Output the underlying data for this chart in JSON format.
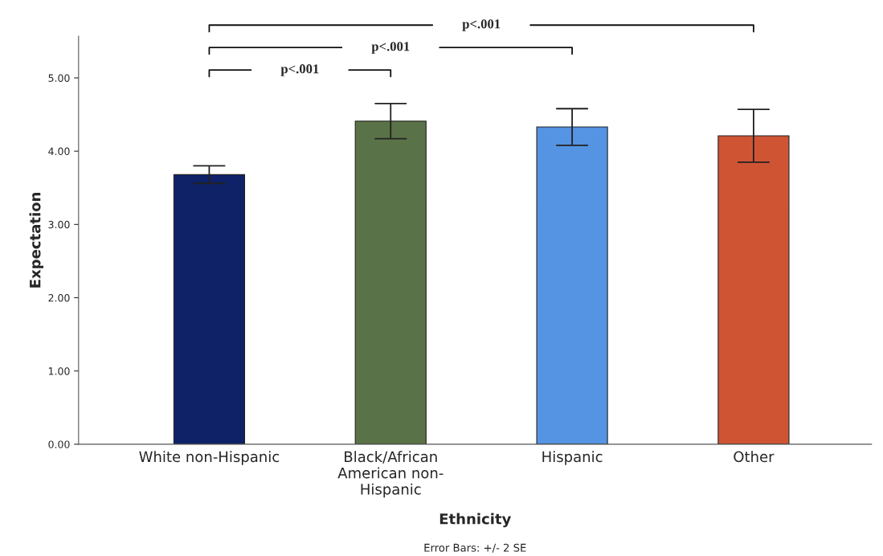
{
  "chart_data": {
    "type": "bar",
    "xlabel": "Ethnicity",
    "ylabel": "Expectation",
    "categories": [
      "White non-Hispanic",
      "Black/African\nAmerican non-\nHispanic",
      "Hispanic",
      "Other"
    ],
    "values": [
      3.68,
      4.41,
      4.33,
      4.21
    ],
    "colors": [
      "#0f2167",
      "#5a7247",
      "#5593e3",
      "#cf5434"
    ],
    "errors": [
      0.12,
      0.24,
      0.25,
      0.36
    ],
    "ylim": [
      0,
      5.57
    ],
    "yticks": [
      {
        "value": 0,
        "label": "0.00"
      },
      {
        "value": 1,
        "label": "1.00"
      },
      {
        "value": 2,
        "label": "2.00"
      },
      {
        "value": 3,
        "label": "3.00"
      },
      {
        "value": 4,
        "label": "4.00"
      },
      {
        "value": 5,
        "label": "5.00"
      }
    ],
    "grid": false,
    "legend": false,
    "annotations": [
      "p<.001",
      "p<.001",
      "p<.001",
      "Error Bars: +/- 2 SE"
    ]
  }
}
